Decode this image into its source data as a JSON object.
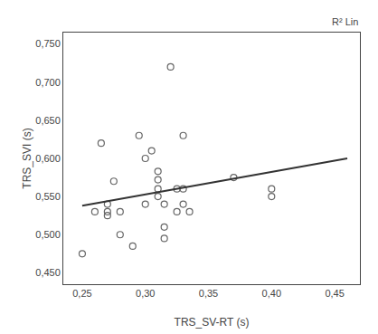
{
  "chart_data": {
    "type": "scatter",
    "xlabel": "TRS_SV-RT (s)",
    "ylabel": "TRS_SVI (s)",
    "annotations": [
      "R² Lin"
    ],
    "series": [
      {
        "type": "scatter",
        "marker": "circle-open",
        "color": "#666666",
        "x": [
          0.25,
          0.26,
          0.265,
          0.27,
          0.27,
          0.27,
          0.275,
          0.28,
          0.28,
          0.29,
          0.295,
          0.3,
          0.3,
          0.305,
          0.31,
          0.31,
          0.31,
          0.31,
          0.315,
          0.315,
          0.315,
          0.32,
          0.325,
          0.325,
          0.33,
          0.33,
          0.33,
          0.335,
          0.37,
          0.4,
          0.4
        ],
        "values": [
          0.475,
          0.53,
          0.62,
          0.53,
          0.525,
          0.54,
          0.57,
          0.53,
          0.5,
          0.485,
          0.63,
          0.54,
          0.6,
          0.61,
          0.583,
          0.572,
          0.56,
          0.55,
          0.54,
          0.51,
          0.495,
          0.72,
          0.56,
          0.53,
          0.56,
          0.63,
          0.54,
          0.53,
          0.575,
          0.56,
          0.55
        ]
      },
      {
        "type": "line",
        "line_style": "solid",
        "color": "#333333",
        "x": [
          0.25,
          0.46
        ],
        "values": [
          0.538,
          0.6
        ]
      }
    ],
    "xlim": [
      0.235,
      0.47
    ],
    "ylim": [
      0.435,
      0.765
    ],
    "xticks": [
      {
        "value": 0.25,
        "label": "0,25"
      },
      {
        "value": 0.3,
        "label": "0,30"
      },
      {
        "value": 0.35,
        "label": "0,35"
      },
      {
        "value": 0.4,
        "label": "0,40"
      },
      {
        "value": 0.45,
        "label": "0,45"
      }
    ],
    "yticks": [
      {
        "value": 0.45,
        "label": "0,450"
      },
      {
        "value": 0.5,
        "label": "0,500"
      },
      {
        "value": 0.55,
        "label": "0,550"
      },
      {
        "value": 0.6,
        "label": "0,600"
      },
      {
        "value": 0.65,
        "label": "0,650"
      },
      {
        "value": 0.7,
        "label": "0,700"
      },
      {
        "value": 0.75,
        "label": "0,750"
      }
    ],
    "grid": false
  }
}
